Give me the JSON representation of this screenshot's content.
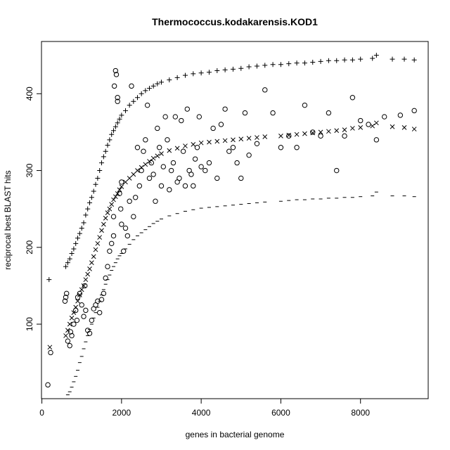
{
  "chart_data": {
    "type": "scatter",
    "title": "Thermococcus.kodakarensis.KOD1",
    "xlabel": "genes in bacterial genome",
    "ylabel": "reciprocal best BLAST hits",
    "xlim": [
      -10,
      9700
    ],
    "ylim": [
      3,
      468
    ],
    "x_ticks": [
      0,
      2000,
      4000,
      6000,
      8000
    ],
    "y_ticks": [
      100,
      200,
      300,
      400
    ],
    "x_tick_labels": [
      "0",
      "2000",
      "4000",
      "6000",
      "8000"
    ],
    "y_tick_labels": [
      "100",
      "200",
      "300",
      "400"
    ],
    "series": [
      {
        "name": "plus",
        "marker": "+",
        "points": [
          [
            180,
            158
          ],
          [
            600,
            175
          ],
          [
            650,
            180
          ],
          [
            700,
            185
          ],
          [
            750,
            192
          ],
          [
            800,
            198
          ],
          [
            850,
            205
          ],
          [
            900,
            212
          ],
          [
            950,
            218
          ],
          [
            1000,
            225
          ],
          [
            1050,
            232
          ],
          [
            1100,
            242
          ],
          [
            1150,
            250
          ],
          [
            1200,
            258
          ],
          [
            1250,
            265
          ],
          [
            1300,
            273
          ],
          [
            1350,
            282
          ],
          [
            1400,
            290
          ],
          [
            1450,
            300
          ],
          [
            1500,
            310
          ],
          [
            1550,
            318
          ],
          [
            1600,
            325
          ],
          [
            1650,
            333
          ],
          [
            1700,
            340
          ],
          [
            1750,
            347
          ],
          [
            1800,
            352
          ],
          [
            1850,
            357
          ],
          [
            1900,
            362
          ],
          [
            1950,
            367
          ],
          [
            2000,
            372
          ],
          [
            2100,
            378
          ],
          [
            2200,
            385
          ],
          [
            2300,
            390
          ],
          [
            2400,
            395
          ],
          [
            2500,
            400
          ],
          [
            2600,
            404
          ],
          [
            2700,
            407
          ],
          [
            2800,
            410
          ],
          [
            2900,
            413
          ],
          [
            3000,
            415
          ],
          [
            3200,
            418
          ],
          [
            3400,
            421
          ],
          [
            3600,
            424
          ],
          [
            3800,
            426
          ],
          [
            4000,
            427
          ],
          [
            4200,
            428
          ],
          [
            4400,
            430
          ],
          [
            4600,
            431
          ],
          [
            4800,
            432
          ],
          [
            5000,
            433
          ],
          [
            5200,
            435
          ],
          [
            5400,
            436
          ],
          [
            5600,
            437
          ],
          [
            5800,
            438
          ],
          [
            6000,
            438
          ],
          [
            6200,
            439
          ],
          [
            6400,
            440
          ],
          [
            6600,
            440
          ],
          [
            6800,
            441
          ],
          [
            7000,
            442
          ],
          [
            7200,
            443
          ],
          [
            7400,
            443
          ],
          [
            7600,
            444
          ],
          [
            7800,
            444
          ],
          [
            8000,
            445
          ],
          [
            8300,
            446
          ],
          [
            8400,
            450
          ],
          [
            8800,
            445
          ],
          [
            9100,
            445
          ],
          [
            9350,
            444
          ]
        ]
      },
      {
        "name": "x",
        "marker": "x",
        "points": [
          [
            200,
            70
          ],
          [
            600,
            85
          ],
          [
            650,
            92
          ],
          [
            700,
            100
          ],
          [
            750,
            108
          ],
          [
            800,
            115
          ],
          [
            850,
            122
          ],
          [
            900,
            130
          ],
          [
            950,
            138
          ],
          [
            1000,
            145
          ],
          [
            1050,
            150
          ],
          [
            1100,
            158
          ],
          [
            1150,
            165
          ],
          [
            1200,
            172
          ],
          [
            1250,
            180
          ],
          [
            1300,
            188
          ],
          [
            1350,
            197
          ],
          [
            1400,
            205
          ],
          [
            1450,
            213
          ],
          [
            1500,
            222
          ],
          [
            1550,
            230
          ],
          [
            1600,
            238
          ],
          [
            1650,
            245
          ],
          [
            1700,
            250
          ],
          [
            1750,
            256
          ],
          [
            1800,
            262
          ],
          [
            1850,
            266
          ],
          [
            1900,
            270
          ],
          [
            1950,
            275
          ],
          [
            2000,
            279
          ],
          [
            2100,
            285
          ],
          [
            2200,
            290
          ],
          [
            2300,
            295
          ],
          [
            2400,
            300
          ],
          [
            2500,
            304
          ],
          [
            2600,
            308
          ],
          [
            2700,
            312
          ],
          [
            2800,
            316
          ],
          [
            2900,
            319
          ],
          [
            3000,
            322
          ],
          [
            3200,
            326
          ],
          [
            3400,
            329
          ],
          [
            3600,
            332
          ],
          [
            3800,
            334
          ],
          [
            4000,
            336
          ],
          [
            4200,
            337
          ],
          [
            4400,
            338
          ],
          [
            4600,
            339
          ],
          [
            4800,
            340
          ],
          [
            5000,
            341
          ],
          [
            5200,
            342
          ],
          [
            5400,
            343
          ],
          [
            5600,
            344
          ],
          [
            6000,
            345
          ],
          [
            6200,
            346
          ],
          [
            6400,
            347
          ],
          [
            6600,
            348
          ],
          [
            6800,
            349
          ],
          [
            7000,
            350
          ],
          [
            7200,
            351
          ],
          [
            7400,
            352
          ],
          [
            7600,
            353
          ],
          [
            7800,
            355
          ],
          [
            8000,
            356
          ],
          [
            8300,
            358
          ],
          [
            8400,
            362
          ],
          [
            8800,
            357
          ],
          [
            9100,
            356
          ],
          [
            9350,
            354
          ]
        ]
      },
      {
        "name": "dash",
        "marker": "-",
        "points": [
          [
            650,
            8
          ],
          [
            700,
            12
          ],
          [
            750,
            18
          ],
          [
            800,
            25
          ],
          [
            850,
            32
          ],
          [
            900,
            40
          ],
          [
            950,
            50
          ],
          [
            1000,
            58
          ],
          [
            1050,
            68
          ],
          [
            1100,
            77
          ],
          [
            1150,
            85
          ],
          [
            1200,
            93
          ],
          [
            1250,
            100
          ],
          [
            1300,
            108
          ],
          [
            1350,
            115
          ],
          [
            1400,
            122
          ],
          [
            1450,
            130
          ],
          [
            1500,
            138
          ],
          [
            1550,
            145
          ],
          [
            1600,
            152
          ],
          [
            1650,
            158
          ],
          [
            1700,
            164
          ],
          [
            1750,
            170
          ],
          [
            1800,
            175
          ],
          [
            1850,
            180
          ],
          [
            1900,
            185
          ],
          [
            1950,
            189
          ],
          [
            2000,
            192
          ],
          [
            2100,
            198
          ],
          [
            2200,
            204
          ],
          [
            2300,
            210
          ],
          [
            2400,
            215
          ],
          [
            2500,
            219
          ],
          [
            2600,
            223
          ],
          [
            2700,
            227
          ],
          [
            2800,
            231
          ],
          [
            2900,
            234
          ],
          [
            3000,
            237
          ],
          [
            3200,
            241
          ],
          [
            3400,
            244
          ],
          [
            3600,
            247
          ],
          [
            3800,
            249
          ],
          [
            4000,
            251
          ],
          [
            4200,
            252
          ],
          [
            4400,
            253
          ],
          [
            4600,
            254
          ],
          [
            4800,
            255
          ],
          [
            5000,
            256
          ],
          [
            5200,
            257
          ],
          [
            5400,
            258
          ],
          [
            5600,
            259
          ],
          [
            6000,
            260
          ],
          [
            6200,
            261
          ],
          [
            6400,
            262
          ],
          [
            6600,
            262
          ],
          [
            6800,
            263
          ],
          [
            7000,
            263
          ],
          [
            7200,
            264
          ],
          [
            7400,
            264
          ],
          [
            7600,
            265
          ],
          [
            7800,
            265
          ],
          [
            8000,
            266
          ],
          [
            8300,
            267
          ],
          [
            8400,
            272
          ],
          [
            8800,
            267
          ],
          [
            9100,
            267
          ],
          [
            9350,
            266
          ]
        ]
      },
      {
        "name": "circle",
        "marker": "o",
        "points": [
          [
            150,
            21
          ],
          [
            220,
            63
          ],
          [
            580,
            130
          ],
          [
            600,
            135
          ],
          [
            620,
            140
          ],
          [
            650,
            78
          ],
          [
            700,
            72
          ],
          [
            720,
            90
          ],
          [
            750,
            85
          ],
          [
            800,
            100
          ],
          [
            850,
            118
          ],
          [
            880,
            105
          ],
          [
            900,
            135
          ],
          [
            950,
            140
          ],
          [
            1000,
            125
          ],
          [
            1050,
            110
          ],
          [
            1080,
            150
          ],
          [
            1100,
            118
          ],
          [
            1150,
            92
          ],
          [
            1200,
            88
          ],
          [
            1250,
            105
          ],
          [
            1300,
            120
          ],
          [
            1350,
            125
          ],
          [
            1400,
            130
          ],
          [
            1450,
            115
          ],
          [
            1500,
            132
          ],
          [
            1550,
            140
          ],
          [
            1600,
            160
          ],
          [
            1650,
            175
          ],
          [
            1700,
            195
          ],
          [
            1750,
            205
          ],
          [
            1800,
            215
          ],
          [
            1800,
            240
          ],
          [
            1820,
            410
          ],
          [
            1850,
            430
          ],
          [
            1870,
            425
          ],
          [
            1900,
            395
          ],
          [
            1900,
            390
          ],
          [
            1950,
            270
          ],
          [
            1980,
            250
          ],
          [
            2000,
            285
          ],
          [
            2000,
            230
          ],
          [
            2050,
            195
          ],
          [
            2100,
            225
          ],
          [
            2150,
            215
          ],
          [
            2200,
            260
          ],
          [
            2250,
            410
          ],
          [
            2300,
            240
          ],
          [
            2350,
            265
          ],
          [
            2400,
            330
          ],
          [
            2450,
            280
          ],
          [
            2500,
            300
          ],
          [
            2550,
            325
          ],
          [
            2600,
            340
          ],
          [
            2650,
            385
          ],
          [
            2700,
            290
          ],
          [
            2750,
            310
          ],
          [
            2800,
            295
          ],
          [
            2850,
            260
          ],
          [
            2900,
            355
          ],
          [
            2950,
            330
          ],
          [
            3000,
            280
          ],
          [
            3050,
            305
          ],
          [
            3100,
            370
          ],
          [
            3150,
            340
          ],
          [
            3200,
            275
          ],
          [
            3250,
            300
          ],
          [
            3300,
            310
          ],
          [
            3350,
            370
          ],
          [
            3400,
            285
          ],
          [
            3450,
            290
          ],
          [
            3500,
            365
          ],
          [
            3550,
            325
          ],
          [
            3600,
            280
          ],
          [
            3650,
            380
          ],
          [
            3700,
            300
          ],
          [
            3750,
            295
          ],
          [
            3800,
            280
          ],
          [
            3850,
            315
          ],
          [
            3900,
            330
          ],
          [
            3950,
            370
          ],
          [
            4000,
            305
          ],
          [
            4100,
            300
          ],
          [
            4200,
            310
          ],
          [
            4300,
            355
          ],
          [
            4400,
            290
          ],
          [
            4500,
            360
          ],
          [
            4600,
            380
          ],
          [
            4700,
            325
          ],
          [
            4800,
            330
          ],
          [
            4900,
            310
          ],
          [
            5000,
            290
          ],
          [
            5100,
            375
          ],
          [
            5200,
            320
          ],
          [
            5400,
            335
          ],
          [
            5600,
            405
          ],
          [
            5800,
            375
          ],
          [
            6000,
            330
          ],
          [
            6200,
            345
          ],
          [
            6400,
            330
          ],
          [
            6600,
            385
          ],
          [
            6800,
            350
          ],
          [
            7000,
            345
          ],
          [
            7200,
            375
          ],
          [
            7400,
            300
          ],
          [
            7600,
            345
          ],
          [
            7800,
            395
          ],
          [
            8000,
            365
          ],
          [
            8200,
            360
          ],
          [
            8400,
            340
          ],
          [
            8600,
            370
          ],
          [
            9000,
            372
          ],
          [
            9350,
            378
          ]
        ]
      }
    ]
  }
}
